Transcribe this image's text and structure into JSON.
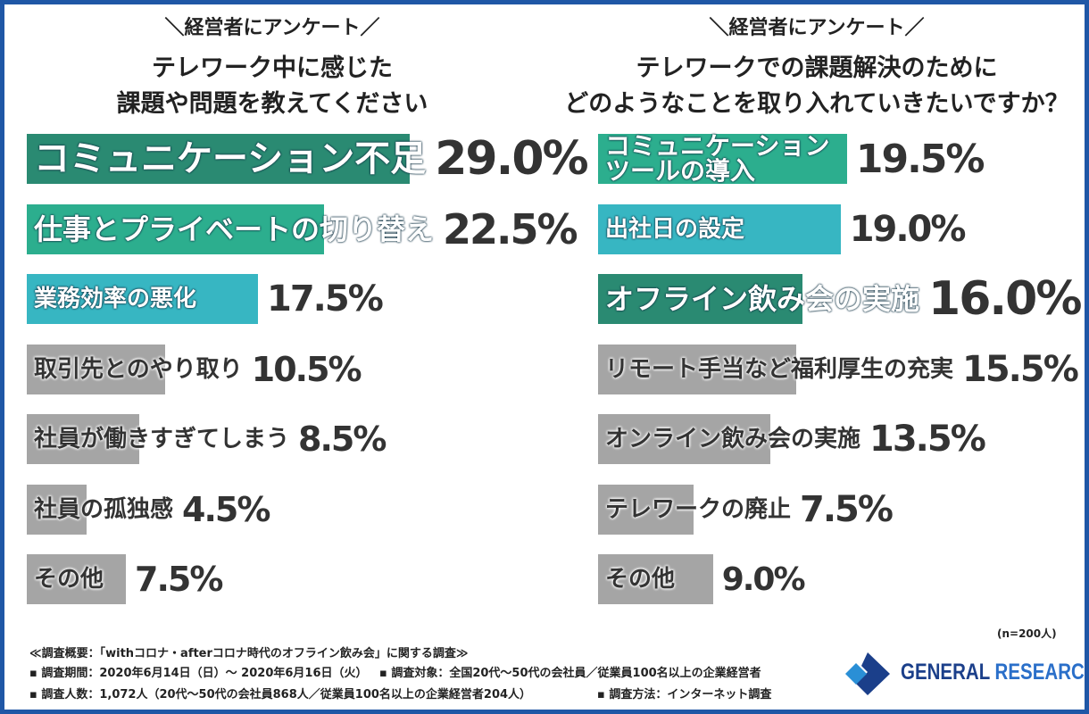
{
  "chart_data": [
    {
      "type": "bar",
      "header": "＼経営者にアンケート／",
      "title": "テレワーク中に感じた\n課題や問題を教えてください",
      "categories": [
        "コミュニケーション不足",
        "仕事とプライベートの切り替え",
        "業務効率の悪化",
        "取引先とのやり取り",
        "社員が働きすぎてしまう",
        "社員の孤独感",
        "その他"
      ],
      "values": [
        29.0,
        22.5,
        17.5,
        10.5,
        8.5,
        4.5,
        7.5
      ],
      "value_labels": [
        "29.0%",
        "22.5%",
        "17.5%",
        "10.5%",
        "8.5%",
        "4.5%",
        "7.5%"
      ],
      "colors": [
        "#2a8a72",
        "#2cae8e",
        "#37b6c2",
        "#a5a5a5",
        "#a5a5a5",
        "#a5a5a5",
        "#a5a5a5"
      ]
    },
    {
      "type": "bar",
      "header": "＼経営者にアンケート／",
      "title": "テレワークでの課題解決のために\nどのようなことを取り入れていきたいですか？",
      "categories": [
        "コミュニケーション\nツールの導入",
        "出社日の設定",
        "オフライン飲み会の実施",
        "リモート手当など福利厚生の充実",
        "オンライン飲み会の実施",
        "テレワークの廃止",
        "その他"
      ],
      "values": [
        19.5,
        19.0,
        16.0,
        15.5,
        13.5,
        7.5,
        9.0
      ],
      "value_labels": [
        "19.5%",
        "19.0%",
        "16.0%",
        "15.5%",
        "13.5%",
        "7.5%",
        "9.0%"
      ],
      "colors": [
        "#2cae8e",
        "#37b6c2",
        "#2a8a72",
        "#a5a5a5",
        "#a5a5a5",
        "#a5a5a5",
        "#a5a5a5"
      ]
    }
  ],
  "sample": "(n=200人)",
  "notes": [
    "≪調査概要：「withコロナ・afterコロナ時代のオフライン飲み会」に関する調査≫",
    "▪ 調査期間：2020年6月14日（日）～ 2020年6月16日（火）",
    "▪ 調査対象：全国20代～50代の会社員／従業員100名以上の企業経営者",
    "▪ 調査人数：1,072人（20代～50代の会社員868人／従業員100名以上の企業経営者204人）",
    "▪ 調査方法：インターネット調査"
  ],
  "logo": {
    "word1": "GENERAL",
    "word2": "RESEARCH"
  }
}
